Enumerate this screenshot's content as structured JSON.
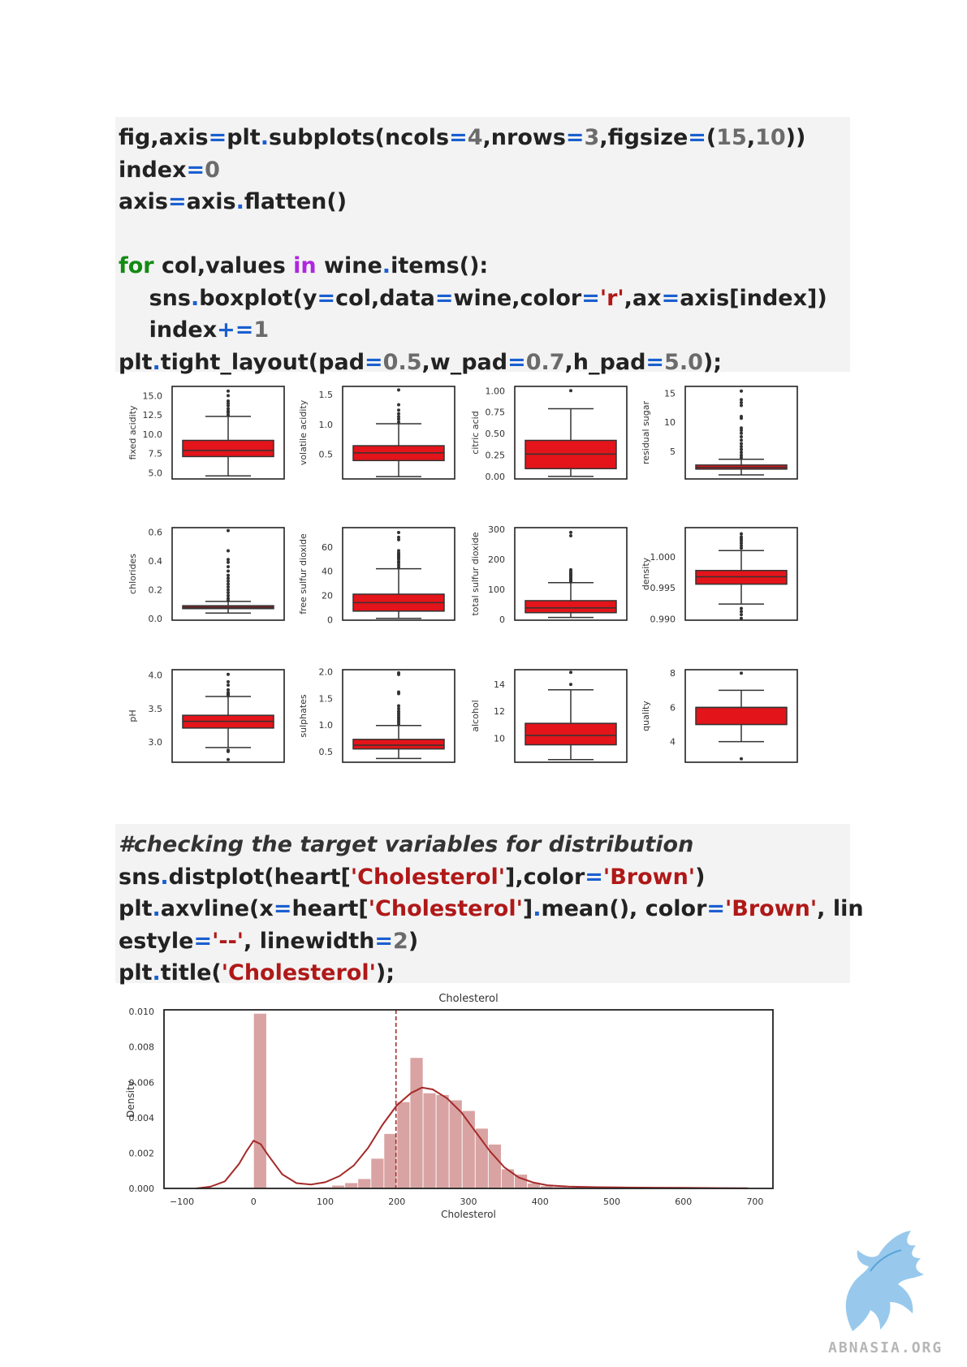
{
  "code_block_1": {
    "lines": [
      [
        {
          "t": "fig,axis"
        },
        {
          "t": "=",
          "c": "op"
        },
        {
          "t": "plt"
        },
        {
          "t": ".",
          "c": "op"
        },
        {
          "t": "subplots(ncols"
        },
        {
          "t": "=",
          "c": "op"
        },
        {
          "t": "4",
          "c": "num"
        },
        {
          "t": ",nrows"
        },
        {
          "t": "=",
          "c": "op"
        },
        {
          "t": "3",
          "c": "num"
        },
        {
          "t": ",figsize"
        },
        {
          "t": "=",
          "c": "op"
        },
        {
          "t": "("
        },
        {
          "t": "15",
          "c": "num"
        },
        {
          "t": ","
        },
        {
          "t": "10",
          "c": "num"
        },
        {
          "t": "))"
        }
      ],
      [
        {
          "t": "index"
        },
        {
          "t": "=",
          "c": "op"
        },
        {
          "t": "0",
          "c": "num"
        }
      ],
      [
        {
          "t": "axis"
        },
        {
          "t": "=",
          "c": "op"
        },
        {
          "t": "axis"
        },
        {
          "t": ".",
          "c": "op"
        },
        {
          "t": "flatten()"
        }
      ],
      [
        {
          "t": " "
        }
      ],
      [
        {
          "t": "for",
          "c": "kw"
        },
        {
          "t": " col,values "
        },
        {
          "t": "in",
          "c": "in"
        },
        {
          "t": " wine"
        },
        {
          "t": ".",
          "c": "op"
        },
        {
          "t": "items():"
        }
      ],
      [
        {
          "t": "    sns"
        },
        {
          "t": ".",
          "c": "op"
        },
        {
          "t": "boxplot(y"
        },
        {
          "t": "=",
          "c": "op"
        },
        {
          "t": "col,data"
        },
        {
          "t": "=",
          "c": "op"
        },
        {
          "t": "wine,color"
        },
        {
          "t": "=",
          "c": "op"
        },
        {
          "t": "'r'",
          "c": "str"
        },
        {
          "t": ",ax"
        },
        {
          "t": "=",
          "c": "op"
        },
        {
          "t": "axis[index])"
        }
      ],
      [
        {
          "t": "    index"
        },
        {
          "t": "+=",
          "c": "op"
        },
        {
          "t": "1",
          "c": "num"
        }
      ],
      [
        {
          "t": "plt"
        },
        {
          "t": ".",
          "c": "op"
        },
        {
          "t": "tight_layout(pad"
        },
        {
          "t": "=",
          "c": "op"
        },
        {
          "t": "0.5",
          "c": "num"
        },
        {
          "t": ",w_pad"
        },
        {
          "t": "=",
          "c": "op"
        },
        {
          "t": "0.7",
          "c": "num"
        },
        {
          "t": ",h_pad"
        },
        {
          "t": "=",
          "c": "op"
        },
        {
          "t": "5.0",
          "c": "num"
        },
        {
          "t": ");"
        }
      ]
    ]
  },
  "code_block_2": {
    "lines": [
      [
        {
          "t": "#checking the target variables for distribution",
          "c": "cmt"
        }
      ],
      [
        {
          "t": "sns"
        },
        {
          "t": ".",
          "c": "op"
        },
        {
          "t": "distplot(heart["
        },
        {
          "t": "'Cholesterol'",
          "c": "str"
        },
        {
          "t": "],color"
        },
        {
          "t": "=",
          "c": "op"
        },
        {
          "t": "'Brown'",
          "c": "str"
        },
        {
          "t": ")"
        }
      ],
      [
        {
          "t": "plt"
        },
        {
          "t": ".",
          "c": "op"
        },
        {
          "t": "axvline(x"
        },
        {
          "t": "=",
          "c": "op"
        },
        {
          "t": "heart["
        },
        {
          "t": "'Cholesterol'",
          "c": "str"
        },
        {
          "t": "]"
        },
        {
          "t": ".",
          "c": "op"
        },
        {
          "t": "mean(), color"
        },
        {
          "t": "=",
          "c": "op"
        },
        {
          "t": "'Brown'",
          "c": "str"
        },
        {
          "t": ", lin"
        }
      ],
      [
        {
          "t": "estyle"
        },
        {
          "t": "=",
          "c": "op"
        },
        {
          "t": "'--'",
          "c": "str"
        },
        {
          "t": ", linewidth"
        },
        {
          "t": "=",
          "c": "op"
        },
        {
          "t": "2",
          "c": "num"
        },
        {
          "t": ")"
        }
      ],
      [
        {
          "t": "plt"
        },
        {
          "t": ".",
          "c": "op"
        },
        {
          "t": "title("
        },
        {
          "t": "'Cholesterol'",
          "c": "str"
        },
        {
          "t": ");"
        }
      ]
    ]
  },
  "colors": {
    "box_fill": "#e3141a",
    "box_line": "#333333",
    "hist_fill": "#d9a3a3",
    "kde_line": "#a52a2a",
    "operator": "#1a5fd0",
    "number": "#6b6b6b",
    "keyword": "#138a13",
    "in_keyword": "#b026e0",
    "string": "#b01818"
  },
  "chart_data": [
    {
      "type": "box",
      "ylabel": "fixed acidity",
      "ylim": [
        4.2,
        16.2
      ],
      "yticks": [
        5.0,
        7.5,
        10.0,
        12.5,
        15.0
      ],
      "tick_labels": [
        "5.0",
        "7.5",
        "10.0",
        "12.5",
        "15.0"
      ],
      "q1": 7.1,
      "median": 7.9,
      "q3": 9.2,
      "whisker_low": 4.6,
      "whisker_high": 12.3,
      "outliers": [
        12.5,
        12.8,
        13.0,
        13.3,
        13.7,
        14.0,
        14.3,
        15.0,
        15.6
      ]
    },
    {
      "type": "box",
      "ylabel": "volatile acidity",
      "ylim": [
        0.08,
        1.64
      ],
      "yticks": [
        0.5,
        1.0,
        1.5
      ],
      "tick_labels": [
        "0.5",
        "1.0",
        "1.5"
      ],
      "q1": 0.39,
      "median": 0.52,
      "q3": 0.64,
      "whisker_low": 0.12,
      "whisker_high": 1.01,
      "outliers": [
        1.04,
        1.09,
        1.13,
        1.18,
        1.24,
        1.33,
        1.58
      ]
    },
    {
      "type": "box",
      "ylabel": "citric acid",
      "ylim": [
        -0.03,
        1.05
      ],
      "yticks": [
        0.0,
        0.25,
        0.5,
        0.75,
        1.0
      ],
      "tick_labels": [
        "0.00",
        "0.25",
        "0.50",
        "0.75",
        "1.00"
      ],
      "q1": 0.09,
      "median": 0.26,
      "q3": 0.42,
      "whisker_low": 0.0,
      "whisker_high": 0.79,
      "outliers": [
        1.0
      ]
    },
    {
      "type": "box",
      "ylabel": "residual sugar",
      "ylim": [
        0.2,
        16.2
      ],
      "yticks": [
        5,
        10,
        15
      ],
      "tick_labels": [
        "5",
        "10",
        "15"
      ],
      "q1": 1.9,
      "median": 2.2,
      "q3": 2.6,
      "whisker_low": 0.9,
      "whisker_high": 3.6,
      "outliers": [
        3.9,
        4.3,
        4.8,
        5.3,
        5.8,
        6.3,
        6.9,
        7.5,
        8.1,
        8.6,
        9.0,
        10.7,
        11.0,
        12.9,
        13.4,
        13.9,
        15.4
      ]
    },
    {
      "type": "box",
      "ylabel": "chlorides",
      "ylim": [
        -0.01,
        0.63
      ],
      "yticks": [
        0.0,
        0.2,
        0.4,
        0.6
      ],
      "tick_labels": [
        "0.0",
        "0.2",
        "0.4",
        "0.6"
      ],
      "q1": 0.07,
      "median": 0.079,
      "q3": 0.09,
      "whisker_low": 0.039,
      "whisker_high": 0.12,
      "outliers": [
        0.125,
        0.14,
        0.16,
        0.18,
        0.2,
        0.22,
        0.24,
        0.26,
        0.28,
        0.3,
        0.33,
        0.36,
        0.39,
        0.41,
        0.47,
        0.61
      ]
    },
    {
      "type": "box",
      "ylabel": "free sulfur dioxide",
      "ylim": [
        -0.5,
        76
      ],
      "yticks": [
        0,
        20,
        40,
        60
      ],
      "tick_labels": [
        "0",
        "20",
        "40",
        "60"
      ],
      "q1": 7,
      "median": 14,
      "q3": 21,
      "whisker_low": 1,
      "whisker_high": 42,
      "outliers": [
        43,
        45,
        47,
        48,
        50,
        51,
        52,
        53,
        54,
        55,
        57,
        66,
        68,
        72
      ]
    },
    {
      "type": "box",
      "ylabel": "total sulfur dioxide",
      "ylim": [
        -3,
        305
      ],
      "yticks": [
        0,
        100,
        200,
        300
      ],
      "tick_labels": [
        "0",
        "100",
        "200",
        "300"
      ],
      "q1": 22,
      "median": 38,
      "q3": 62,
      "whisker_low": 6,
      "whisker_high": 122,
      "outliers": [
        124,
        126,
        128,
        130,
        133,
        136,
        140,
        144,
        147,
        150,
        153,
        155,
        160,
        165,
        278,
        289
      ]
    },
    {
      "type": "box",
      "ylabel": "density",
      "ylim": [
        0.9898,
        1.0047
      ],
      "yticks": [
        0.99,
        0.995,
        1.0
      ],
      "tick_labels": [
        "0.990",
        "0.995",
        "1.000"
      ],
      "q1": 0.9956,
      "median": 0.9968,
      "q3": 0.9978,
      "whisker_low": 0.9924,
      "whisker_high": 1.001,
      "outliers": [
        0.9901,
        0.9907,
        0.9912,
        0.9917,
        1.0014,
        1.0018,
        1.0022,
        1.0026,
        1.0029,
        1.0032,
        1.0037
      ]
    },
    {
      "type": "box",
      "ylabel": "pH",
      "ylim": [
        2.7,
        4.08
      ],
      "yticks": [
        3.0,
        3.5,
        4.0
      ],
      "tick_labels": [
        "3.0",
        "3.5",
        "4.0"
      ],
      "q1": 3.21,
      "median": 3.31,
      "q3": 3.4,
      "whisker_low": 2.92,
      "whisker_high": 3.68,
      "outliers": [
        2.74,
        2.86,
        2.88,
        3.69,
        3.71,
        3.72,
        3.74,
        3.78,
        3.85,
        3.9,
        4.01
      ]
    },
    {
      "type": "box",
      "ylabel": "sulphates",
      "ylim": [
        0.3,
        2.04
      ],
      "yticks": [
        0.5,
        1.0,
        1.5,
        2.0
      ],
      "tick_labels": [
        "0.5",
        "1.0",
        "1.5",
        "2.0"
      ],
      "q1": 0.55,
      "median": 0.62,
      "q3": 0.73,
      "whisker_low": 0.37,
      "whisker_high": 0.99,
      "outliers": [
        1.02,
        1.06,
        1.1,
        1.14,
        1.18,
        1.22,
        1.26,
        1.31,
        1.36,
        1.59,
        1.62,
        1.95,
        1.98
      ]
    },
    {
      "type": "box",
      "ylabel": "alcohol",
      "ylim": [
        8.2,
        15.1
      ],
      "yticks": [
        10,
        12,
        14
      ],
      "tick_labels": [
        "10",
        "12",
        "14"
      ],
      "q1": 9.5,
      "median": 10.2,
      "q3": 11.1,
      "whisker_low": 8.4,
      "whisker_high": 13.6,
      "outliers": [
        14.0,
        14.9
      ]
    },
    {
      "type": "box",
      "ylabel": "quality",
      "ylim": [
        2.8,
        8.2
      ],
      "yticks": [
        4,
        6,
        8
      ],
      "tick_labels": [
        "4",
        "6",
        "8"
      ],
      "q1": 5,
      "median": 6,
      "q3": 6,
      "whisker_low": 4,
      "whisker_high": 7,
      "outliers": [
        3,
        8
      ]
    },
    {
      "type": "bar",
      "title": "Cholesterol",
      "xlabel": "Cholesterol",
      "ylabel": "Density",
      "xlim": [
        -125,
        725
      ],
      "ylim": [
        0,
        0.0101
      ],
      "xticks": [
        -100,
        0,
        100,
        200,
        300,
        400,
        500,
        600,
        700
      ],
      "xtick_labels": [
        "−100",
        "0",
        "100",
        "200",
        "300",
        "400",
        "500",
        "600",
        "700"
      ],
      "yticks": [
        0,
        0.002,
        0.004,
        0.006,
        0.008,
        0.01
      ],
      "ytick_labels": [
        "0.000",
        "0.002",
        "0.004",
        "0.006",
        "0.008",
        "0.010"
      ],
      "bin_width": 18.2,
      "bins": [
        {
          "x0": 0,
          "h": 0.0099
        },
        {
          "x0": 91,
          "h": 8e-05
        },
        {
          "x0": 109.2,
          "h": 0.00018
        },
        {
          "x0": 127.4,
          "h": 0.00032
        },
        {
          "x0": 145.6,
          "h": 0.00055
        },
        {
          "x0": 163.8,
          "h": 0.0017
        },
        {
          "x0": 182,
          "h": 0.0031
        },
        {
          "x0": 200.2,
          "h": 0.0049
        },
        {
          "x0": 218.4,
          "h": 0.0074
        },
        {
          "x0": 236.6,
          "h": 0.0054
        },
        {
          "x0": 254.8,
          "h": 0.0053
        },
        {
          "x0": 273,
          "h": 0.005
        },
        {
          "x0": 291.2,
          "h": 0.0044
        },
        {
          "x0": 309.4,
          "h": 0.0034
        },
        {
          "x0": 327.6,
          "h": 0.0025
        },
        {
          "x0": 345.8,
          "h": 0.0011
        },
        {
          "x0": 364,
          "h": 0.0008
        },
        {
          "x0": 382.2,
          "h": 0.0003
        },
        {
          "x0": 400.4,
          "h": 0.00015
        },
        {
          "x0": 418.6,
          "h": 0.0001
        },
        {
          "x0": 436.8,
          "h": 6e-05
        },
        {
          "x0": 473.2,
          "h": 3e-05
        },
        {
          "x0": 564.2,
          "h": 3e-05
        },
        {
          "x0": 600.6,
          "h": 2e-05
        }
      ],
      "kde": [
        [
          -80,
          0.0
        ],
        [
          -60,
          0.0001
        ],
        [
          -40,
          0.0004
        ],
        [
          -20,
          0.0014
        ],
        [
          -10,
          0.0021
        ],
        [
          0,
          0.0027
        ],
        [
          10,
          0.0025
        ],
        [
          20,
          0.0019
        ],
        [
          40,
          0.0008
        ],
        [
          60,
          0.0003
        ],
        [
          80,
          0.00022
        ],
        [
          100,
          0.00035
        ],
        [
          120,
          0.0007
        ],
        [
          140,
          0.0013
        ],
        [
          160,
          0.0023
        ],
        [
          180,
          0.0036
        ],
        [
          200,
          0.0047
        ],
        [
          220,
          0.0054
        ],
        [
          235,
          0.0057
        ],
        [
          250,
          0.0056
        ],
        [
          270,
          0.0051
        ],
        [
          290,
          0.0043
        ],
        [
          310,
          0.0032
        ],
        [
          330,
          0.0021
        ],
        [
          350,
          0.0012
        ],
        [
          370,
          0.00062
        ],
        [
          390,
          0.00034
        ],
        [
          410,
          0.00018
        ],
        [
          440,
          0.0001
        ],
        [
          480,
          7e-05
        ],
        [
          520,
          5e-05
        ],
        [
          560,
          4e-05
        ],
        [
          600,
          3e-05
        ],
        [
          650,
          2e-05
        ],
        [
          690,
          1e-05
        ]
      ],
      "mean_line": 198.8
    }
  ],
  "logo": {
    "text": "ABNASIA.ORG",
    "icon": "griffin-logo-icon"
  }
}
